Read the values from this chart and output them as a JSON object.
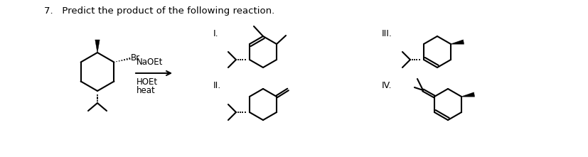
{
  "title": "7.   Predict the product of the following reaction.",
  "background_color": "#ffffff",
  "text_color": "#000000",
  "label_I": "I.",
  "label_II": "II.",
  "label_III": "III.",
  "label_IV": "IV.",
  "reagents_line1": "NaOEt",
  "reagents_line2": "HOEt",
  "reagents_line3": "heat",
  "Br_label": "Br",
  "lw": 1.5,
  "title_fontsize": 9.5,
  "label_fontsize": 9.0,
  "reagent_fontsize": 8.5
}
